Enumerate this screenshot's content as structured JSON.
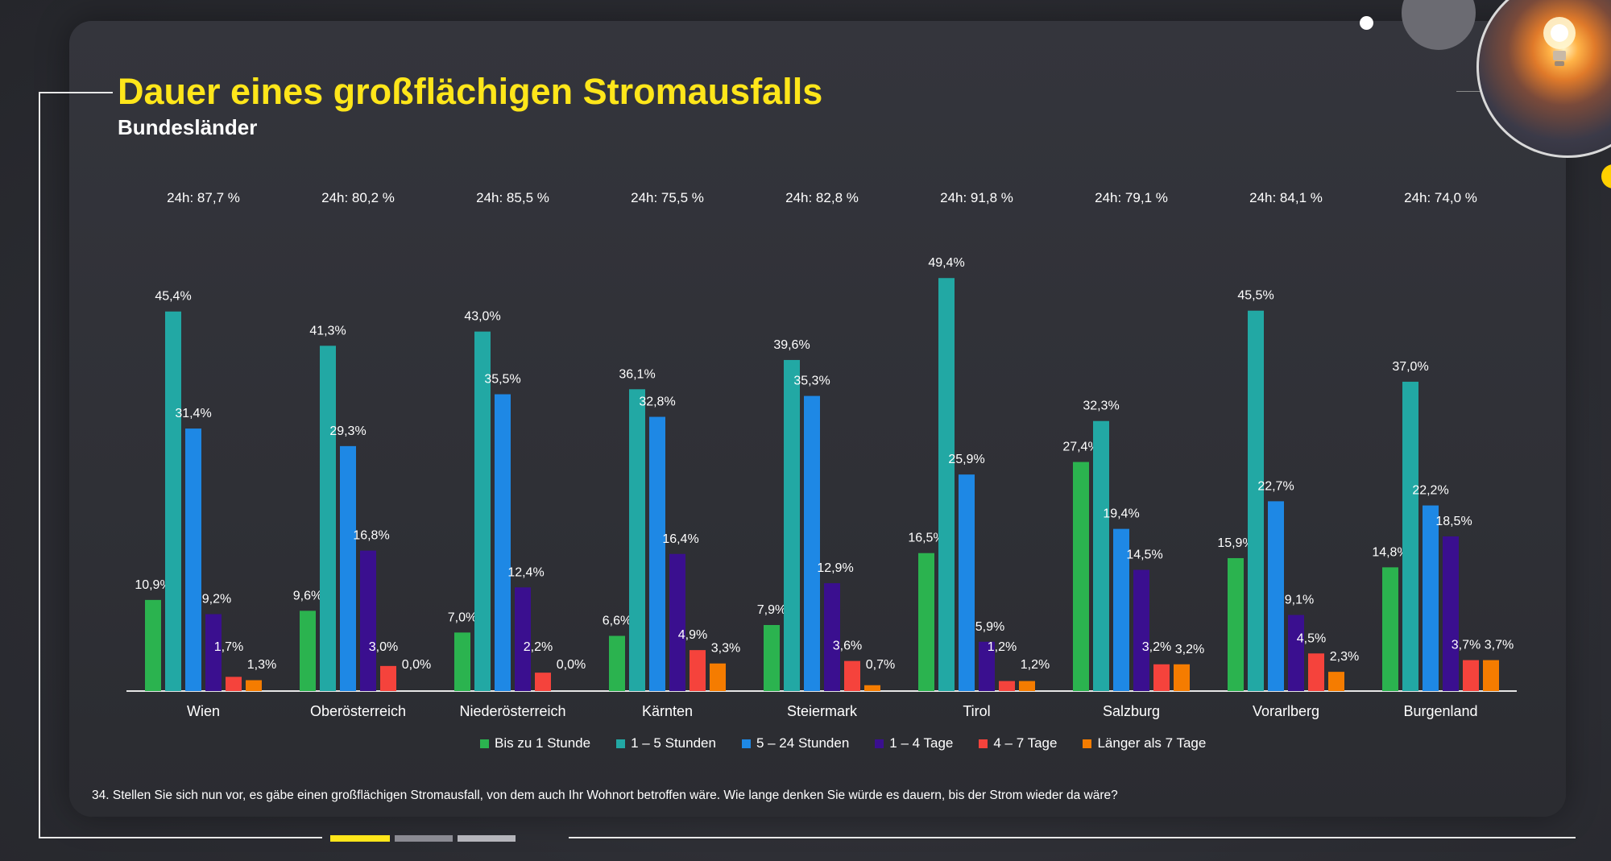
{
  "header": {
    "title": "Dauer eines großflächigen Stromausfalls",
    "subtitle": "Bundesländer"
  },
  "footnote": "34. Stellen Sie sich nun vor, es gäbe einen großflächigen Stromausfall, von dem auch Ihr Wohnort betroffen wäre. Wie lange denken Sie würde es dauern, bis der Strom wieder da wäre?",
  "decor": {
    "photo_icon": "lightbulb-icon",
    "accent_color": "#ffe61a"
  },
  "chart_data": {
    "type": "bar",
    "categories": [
      "Wien",
      "Oberösterreich",
      "Niederösterreich",
      "Kärnten",
      "Steiermark",
      "Tirol",
      "Salzburg",
      "Vorarlberg",
      "Burgenland"
    ],
    "group_annotations": [
      "24h: 87,7 %",
      "24h: 80,2 %",
      "24h: 85,5 %",
      "24h: 75,5 %",
      "24h: 82,8 %",
      "24h: 91,8 %",
      "24h: 79,1 %",
      "24h: 84,1 %",
      "24h: 74,0 %"
    ],
    "series": [
      {
        "name": "Bis zu 1 Stunde",
        "color": "#2bb34f",
        "values": [
          10.9,
          9.6,
          7.0,
          6.6,
          7.9,
          16.5,
          27.4,
          15.9,
          14.8
        ],
        "labels": [
          "10,9%",
          "9,6%",
          "7,0%",
          "6,6%",
          "7,9%",
          "16,5%",
          "27,4%",
          "15,9%",
          "14,8%"
        ]
      },
      {
        "name": "1 – 5 Stunden",
        "color": "#22a8a4",
        "values": [
          45.4,
          41.3,
          43.0,
          36.1,
          39.6,
          49.4,
          32.3,
          45.5,
          37.0
        ],
        "labels": [
          "45,4%",
          "41,3%",
          "43,0%",
          "36,1%",
          "39,6%",
          "49,4%",
          "32,3%",
          "45,5%",
          "37,0%"
        ]
      },
      {
        "name": "5 – 24 Stunden",
        "color": "#1e88e5",
        "values": [
          31.4,
          29.3,
          35.5,
          32.8,
          35.3,
          25.9,
          19.4,
          22.7,
          22.2
        ],
        "labels": [
          "31,4%",
          "29,3%",
          "35,5%",
          "32,8%",
          "35,3%",
          "25,9%",
          "19,4%",
          "22,7%",
          "22,2%"
        ]
      },
      {
        "name": "1 – 4 Tage",
        "color": "#3a0f8f",
        "values": [
          9.2,
          16.8,
          12.4,
          16.4,
          12.9,
          5.9,
          14.5,
          9.1,
          18.5
        ],
        "labels": [
          "9,2%",
          "16,8%",
          "12,4%",
          "16,4%",
          "12,9%",
          "5,9%",
          "14,5%",
          "9,1%",
          "18,5%"
        ]
      },
      {
        "name": "4 – 7 Tage",
        "color": "#f5433c",
        "values": [
          1.7,
          3.0,
          2.2,
          4.9,
          3.6,
          1.2,
          3.2,
          4.5,
          3.7
        ],
        "labels": [
          "1,7%",
          "3,0%",
          "2,2%",
          "4,9%",
          "3,6%",
          "1,2%",
          "3,2%",
          "4,5%",
          "3,7%"
        ]
      },
      {
        "name": "Länger als 7 Tage",
        "color": "#f57c00",
        "values": [
          1.3,
          0.0,
          0.0,
          3.3,
          0.7,
          1.2,
          3.2,
          2.3,
          3.7
        ],
        "labels": [
          "1,3%",
          "0,0%",
          "0,0%",
          "3,3%",
          "0,7%",
          "1,2%",
          "3,2%",
          "2,3%",
          "3,7%"
        ]
      }
    ],
    "ylim": [
      0,
      50
    ],
    "grid": false,
    "legend": "bottom-center"
  }
}
